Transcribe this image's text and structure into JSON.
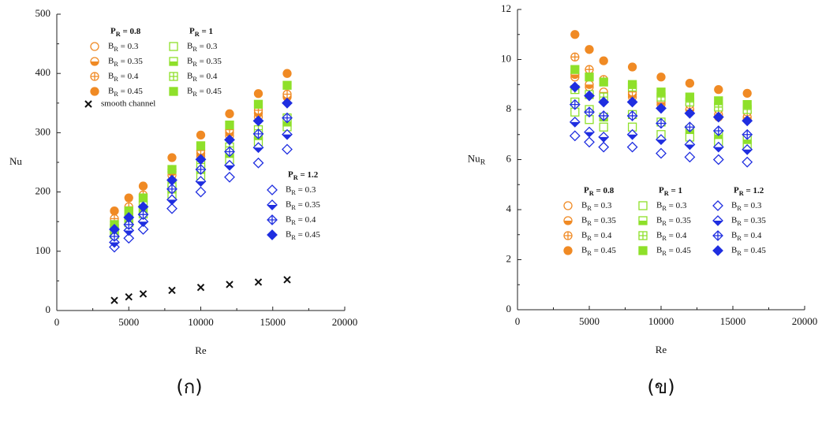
{
  "chart_data": [
    {
      "type": "scatter",
      "caption": "(ก)",
      "xlabel": "Re",
      "ylabel": "Nu",
      "x": [
        4000,
        5000,
        6000,
        8000,
        10000,
        12000,
        14000,
        16000
      ],
      "xlim": [
        0,
        20000
      ],
      "xticks": [
        0,
        5000,
        10000,
        15000,
        20000
      ],
      "ylim": [
        0,
        500
      ],
      "yticks": [
        0,
        100,
        200,
        300,
        400,
        500
      ],
      "groups": [
        {
          "title": "PR = 0.8",
          "color": "#f08a24",
          "marker": "circle",
          "series": [
            {
              "name": "BR = 0.3",
              "fill": "open",
              "values": [
                145,
                168,
                188,
                228,
                260,
                295,
                327,
                360
              ]
            },
            {
              "name": "BR = 0.35",
              "fill": "half",
              "values": [
                150,
                172,
                192,
                234,
                265,
                300,
                333,
                362
              ]
            },
            {
              "name": "BR = 0.4",
              "fill": "plus",
              "values": [
                155,
                175,
                195,
                238,
                270,
                305,
                338,
                365
              ]
            },
            {
              "name": "BR = 0.45",
              "fill": "full",
              "values": [
                168,
                190,
                210,
                258,
                296,
                332,
                366,
                400
              ]
            }
          ]
        },
        {
          "title": "PR = 1",
          "color": "#8ee02a",
          "marker": "square",
          "series": [
            {
              "name": "BR = 0.3",
              "fill": "open",
              "values": [
                128,
                148,
                163,
                195,
                228,
                255,
                285,
                310
              ]
            },
            {
              "name": "BR = 0.35",
              "fill": "half",
              "values": [
                133,
                153,
                170,
                205,
                238,
                265,
                295,
                318
              ]
            },
            {
              "name": "BR = 0.4",
              "fill": "plus",
              "values": [
                138,
                158,
                178,
                215,
                248,
                276,
                305,
                325
              ]
            },
            {
              "name": "BR = 0.45",
              "fill": "full",
              "values": [
                145,
                168,
                190,
                238,
                278,
                313,
                348,
                380
              ]
            }
          ]
        },
        {
          "title": "PR = 1.2",
          "color": "#1f2ee0",
          "marker": "diamond",
          "series": [
            {
              "name": "BR = 0.3",
              "fill": "open",
              "values": [
                107,
                122,
                137,
                172,
                200,
                225,
                249,
                272
              ]
            },
            {
              "name": "BR = 0.35",
              "fill": "half",
              "values": [
                115,
                135,
                150,
                187,
                218,
                245,
                275,
                297
              ]
            },
            {
              "name": "BR = 0.4",
              "fill": "plus",
              "values": [
                125,
                145,
                162,
                205,
                238,
                268,
                298,
                325
              ]
            },
            {
              "name": "BR = 0.45",
              "fill": "full",
              "values": [
                137,
                157,
                175,
                220,
                255,
                288,
                320,
                350
              ]
            }
          ]
        }
      ],
      "extra": {
        "name": "smooth channel",
        "color": "#111111",
        "marker": "x",
        "values": [
          17,
          23,
          28,
          34,
          39,
          44,
          48,
          52
        ]
      }
    },
    {
      "type": "scatter",
      "caption": "(ข)",
      "xlabel": "Re",
      "ylabel": "NuR",
      "x": [
        4000,
        5000,
        6000,
        8000,
        10000,
        12000,
        14000,
        16000
      ],
      "xlim": [
        0,
        20000
      ],
      "xticks": [
        0,
        5000,
        10000,
        15000,
        20000
      ],
      "ylim": [
        0,
        12
      ],
      "yticks": [
        0,
        2,
        4,
        6,
        8,
        10,
        12
      ],
      "groups": [
        {
          "title": "PR = 0.8",
          "color": "#f08a24",
          "marker": "circle",
          "series": [
            {
              "name": "BR = 0.3",
              "fill": "open",
              "values": [
                9.3,
                8.9,
                8.6,
                8.5,
                8.2,
                8.0,
                7.7,
                7.6
              ]
            },
            {
              "name": "BR = 0.35",
              "fill": "half",
              "values": [
                9.4,
                9.0,
                8.7,
                8.6,
                8.3,
                8.0,
                7.8,
                7.7
              ]
            },
            {
              "name": "BR = 0.4",
              "fill": "plus",
              "values": [
                10.1,
                9.6,
                9.2,
                8.7,
                8.5,
                8.2,
                8.0,
                7.9
              ]
            },
            {
              "name": "BR = 0.45",
              "fill": "full",
              "values": [
                11.0,
                10.4,
                9.95,
                9.7,
                9.3,
                9.05,
                8.8,
                8.65
              ]
            }
          ]
        },
        {
          "title": "PR = 1",
          "color": "#8ee02a",
          "marker": "square",
          "series": [
            {
              "name": "BR = 0.3",
              "fill": "open",
              "values": [
                7.9,
                7.6,
                7.3,
                7.3,
                7.0,
                6.9,
                6.7,
                6.6
              ]
            },
            {
              "name": "BR = 0.35",
              "fill": "half",
              "values": [
                8.3,
                8.0,
                7.7,
                7.8,
                7.5,
                7.2,
                7.0,
                6.8
              ]
            },
            {
              "name": "BR = 0.4",
              "fill": "plus",
              "values": [
                8.8,
                8.6,
                8.5,
                8.9,
                8.5,
                8.3,
                8.1,
                8.0
              ]
            },
            {
              "name": "BR = 0.45",
              "fill": "full",
              "values": [
                9.6,
                9.3,
                9.1,
                9.0,
                8.7,
                8.5,
                8.35,
                8.2
              ]
            }
          ]
        },
        {
          "title": "PR = 1.2",
          "color": "#1f2ee0",
          "marker": "diamond",
          "series": [
            {
              "name": "BR = 0.3",
              "fill": "open",
              "values": [
                6.95,
                6.7,
                6.5,
                6.5,
                6.25,
                6.1,
                6.0,
                5.9
              ]
            },
            {
              "name": "BR = 0.35",
              "fill": "half",
              "values": [
                7.5,
                7.1,
                6.9,
                7.0,
                6.8,
                6.6,
                6.5,
                6.4
              ]
            },
            {
              "name": "BR = 0.4",
              "fill": "plus",
              "values": [
                8.2,
                7.9,
                7.75,
                7.75,
                7.45,
                7.3,
                7.15,
                7.0
              ]
            },
            {
              "name": "BR = 0.45",
              "fill": "full",
              "values": [
                8.9,
                8.55,
                8.3,
                8.3,
                8.05,
                7.85,
                7.7,
                7.55
              ]
            }
          ]
        }
      ]
    }
  ]
}
